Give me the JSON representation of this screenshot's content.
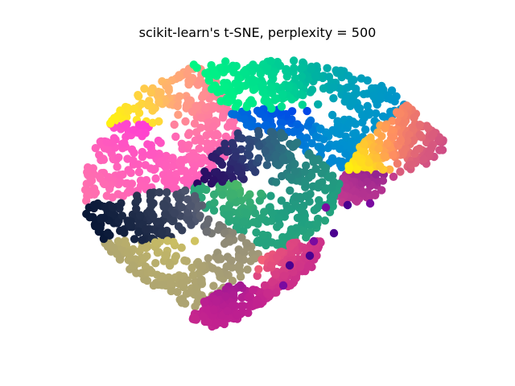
{
  "chart_data": {
    "type": "scatter",
    "title": "scikit-learn's t-SNE, perplexity = 500",
    "xlabel": "",
    "ylabel": "",
    "axes_visible": false,
    "grid": false,
    "legend": "none",
    "marker": "filled circle",
    "xlim": [
      0,
      100
    ],
    "ylim": [
      0,
      100
    ],
    "clusters": [
      {
        "region": "upper-left lobe",
        "colors": [
          "#ffff00",
          "#ffb070",
          "#ff69b4",
          "#ff00ff"
        ],
        "center": [
          27,
          74
        ],
        "approx_points": 420
      },
      {
        "region": "top arc",
        "colors": [
          "#00ff80",
          "#00b3a0",
          "#0090d0",
          "#0000ff"
        ],
        "center": [
          63,
          79
        ],
        "approx_points": 420
      },
      {
        "region": "right wing",
        "colors": [
          "#ffff00",
          "#ff9060",
          "#c03890",
          "#4b0090"
        ],
        "center": [
          82,
          58
        ],
        "approx_points": 300
      },
      {
        "region": "center",
        "colors": [
          "#2a0060",
          "#306080",
          "#20a080",
          "#90e040"
        ],
        "center": [
          51,
          54
        ],
        "approx_points": 360
      },
      {
        "region": "lower-left",
        "colors": [
          "#001030",
          "#505870",
          "#a09878",
          "#f0e050"
        ],
        "center": [
          34,
          35
        ],
        "approx_points": 380
      },
      {
        "region": "bottom",
        "colors": [
          "#ffff00",
          "#ff7070",
          "#c02090",
          "#3a00a0"
        ],
        "center": [
          47,
          23
        ],
        "approx_points": 300
      }
    ]
  }
}
